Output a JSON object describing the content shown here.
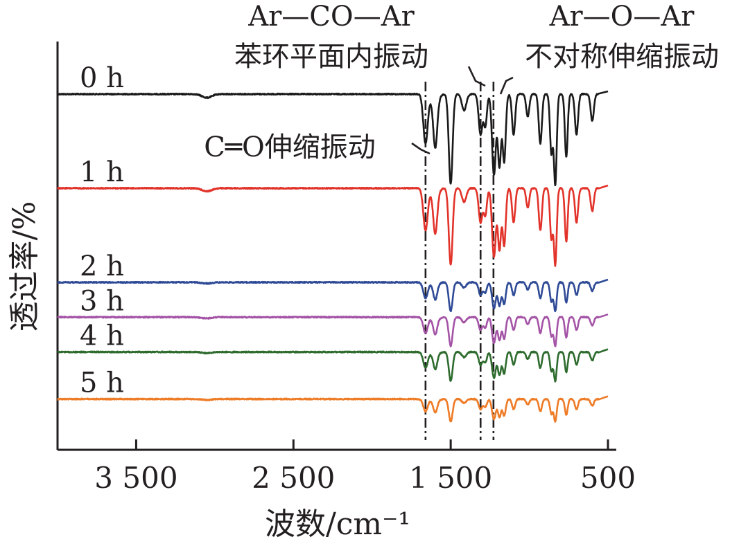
{
  "chart_data": {
    "type": "line",
    "ylabel": "透过率/%",
    "xlabel": "波数/cm⁻¹",
    "x_reversed": true,
    "xlim": [
      4000,
      500
    ],
    "x_ticks": [
      3500,
      2500,
      1500,
      500
    ],
    "x_tick_labels": [
      "3 500",
      "2 500",
      "1 500",
      "500"
    ],
    "y_ticks_shown": false,
    "grid": false,
    "series": [
      {
        "name": "0 h",
        "color": "#1a1a1a",
        "baseline": 0.0,
        "scale": 1.0
      },
      {
        "name": "1 h",
        "color": "#e2332a",
        "baseline": 1.0,
        "scale": 0.85
      },
      {
        "name": "2 h",
        "color": "#2e4a96",
        "baseline": 2.0,
        "scale": 0.32
      },
      {
        "name": "3 h",
        "color": "#a454a6",
        "baseline": 2.37,
        "scale": 0.32
      },
      {
        "name": "4 h",
        "color": "#2e6b2e",
        "baseline": 2.74,
        "scale": 0.32
      },
      {
        "name": "5 h",
        "color": "#ee7b26",
        "baseline": 3.24,
        "scale": 0.25
      }
    ],
    "absorption_bands": [
      {
        "wavenumber": 1660,
        "depth": 0.55,
        "width": 14
      },
      {
        "wavenumber": 1598,
        "depth": 0.45,
        "width": 12
      },
      {
        "wavenumber": 1500,
        "depth": 1.0,
        "width": 12
      },
      {
        "wavenumber": 1415,
        "depth": 0.18,
        "width": 14
      },
      {
        "wavenumber": 1310,
        "depth": 0.45,
        "width": 12
      },
      {
        "wavenumber": 1280,
        "depth": 0.35,
        "width": 10
      },
      {
        "wavenumber": 1225,
        "depth": 0.9,
        "width": 12
      },
      {
        "wavenumber": 1190,
        "depth": 0.8,
        "width": 10
      },
      {
        "wavenumber": 1160,
        "depth": 0.75,
        "width": 10
      },
      {
        "wavenumber": 1100,
        "depth": 0.45,
        "width": 10
      },
      {
        "wavenumber": 1010,
        "depth": 0.25,
        "width": 10
      },
      {
        "wavenumber": 930,
        "depth": 0.55,
        "width": 10
      },
      {
        "wavenumber": 860,
        "depth": 0.65,
        "width": 9
      },
      {
        "wavenumber": 835,
        "depth": 1.0,
        "width": 9
      },
      {
        "wavenumber": 765,
        "depth": 0.7,
        "width": 9
      },
      {
        "wavenumber": 700,
        "depth": 0.45,
        "width": 10
      },
      {
        "wavenumber": 600,
        "depth": 0.3,
        "width": 10
      }
    ],
    "reference_lines": [
      {
        "name": "C=O",
        "wavenumber": 1660
      },
      {
        "name": "Ar-CO-Ar",
        "wavenumber": 1310
      },
      {
        "name": "Ar-O-Ar",
        "wavenumber": 1228
      }
    ],
    "annotations": [
      {
        "name": "Ar—CO—Ar",
        "lines": [
          "Ar—CO—Ar",
          "苯环平面内振动"
        ]
      },
      {
        "name": "Ar—O—Ar",
        "lines": [
          "Ar—O—Ar",
          "不对称伸缩振动"
        ]
      },
      {
        "name": "C=O",
        "lines": [
          "C═O伸缩振动"
        ]
      }
    ]
  }
}
